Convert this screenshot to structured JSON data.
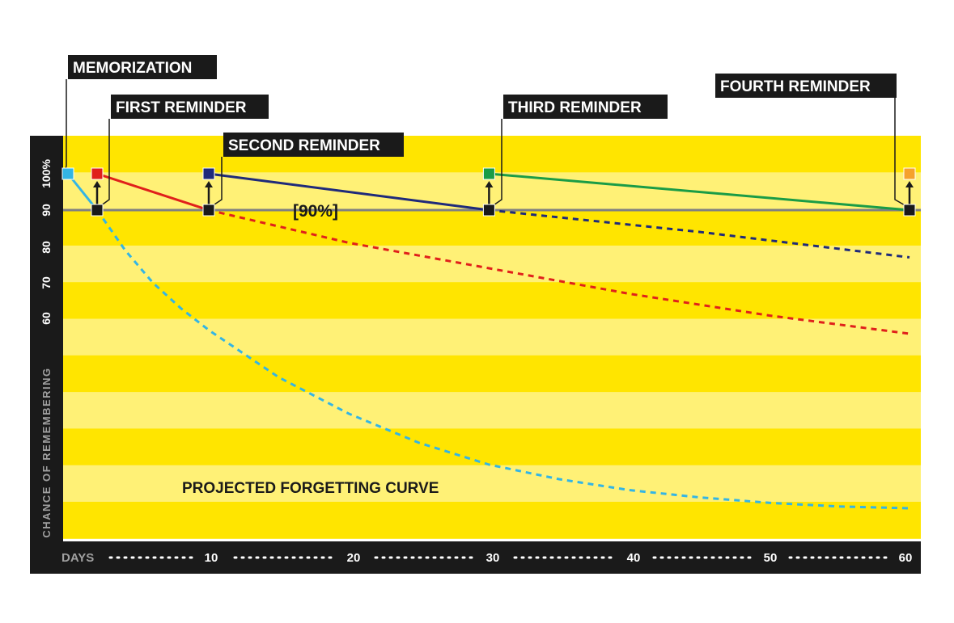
{
  "chart_data": {
    "type": "line",
    "title": "",
    "xlabel": "DAYS",
    "ylabel": "CHANCE OF REMEMBERING",
    "x_ticks": [
      "10",
      "20",
      "30",
      "40",
      "50",
      "60"
    ],
    "y_ticks": [
      "100%",
      "90",
      "80",
      "70",
      "60"
    ],
    "xlim": [
      0,
      60
    ],
    "ylim": [
      0,
      110
    ],
    "threshold": {
      "value": 90,
      "label": "[90%]"
    },
    "annotations": {
      "curve_label": "PROJECTED FORGETTING CURVE"
    },
    "events": [
      {
        "label": "MEMORIZATION",
        "x": 0
      },
      {
        "label": "FIRST REMINDER",
        "x": 2
      },
      {
        "label": "SECOND REMINDER",
        "x": 10
      },
      {
        "label": "THIRD REMINDER",
        "x": 30
      },
      {
        "label": "FOURTH REMINDER",
        "x": 60
      }
    ],
    "series": [
      {
        "color": "#33b5e5",
        "style": "solid",
        "points": [
          [
            0,
            100
          ],
          [
            2,
            90
          ]
        ]
      },
      {
        "color": "#33b5e5",
        "style": "dashed",
        "points": [
          [
            2,
            90
          ],
          [
            4,
            79
          ],
          [
            6,
            70
          ],
          [
            8,
            63
          ],
          [
            10,
            57
          ],
          [
            15,
            44
          ],
          [
            20,
            34
          ],
          [
            25,
            26
          ],
          [
            30,
            20
          ],
          [
            35,
            16
          ],
          [
            40,
            13
          ],
          [
            45,
            11
          ],
          [
            50,
            9.5
          ],
          [
            55,
            8.5
          ],
          [
            60,
            8
          ]
        ]
      },
      {
        "color": "#e0201b",
        "style": "solid",
        "points": [
          [
            2,
            100
          ],
          [
            10,
            90
          ]
        ]
      },
      {
        "color": "#e0201b",
        "style": "dashed",
        "points": [
          [
            10,
            90
          ],
          [
            20,
            81
          ],
          [
            30,
            74
          ],
          [
            40,
            67
          ],
          [
            50,
            61
          ],
          [
            60,
            56
          ]
        ]
      },
      {
        "color": "#1f2a7a",
        "style": "solid",
        "points": [
          [
            10,
            100
          ],
          [
            30,
            90
          ]
        ]
      },
      {
        "color": "#1f2a7a",
        "style": "dashed",
        "points": [
          [
            30,
            90
          ],
          [
            45,
            84
          ],
          [
            60,
            77
          ]
        ]
      },
      {
        "color": "#1a9c46",
        "style": "solid",
        "points": [
          [
            30,
            100
          ],
          [
            60,
            90
          ]
        ]
      }
    ],
    "markers": [
      {
        "x": 0,
        "y": 100,
        "color": "#33b5e5"
      },
      {
        "x": 2,
        "y": 100,
        "color": "#e0201b"
      },
      {
        "x": 10,
        "y": 100,
        "color": "#1f2a7a"
      },
      {
        "x": 30,
        "y": 100,
        "color": "#1a9c46"
      },
      {
        "x": 60,
        "y": 100,
        "color": "#f5a12c"
      },
      {
        "x": 2,
        "y": 90,
        "color": "#1a1a1a"
      },
      {
        "x": 10,
        "y": 90,
        "color": "#1a1a1a"
      },
      {
        "x": 30,
        "y": 90,
        "color": "#1a1a1a"
      },
      {
        "x": 60,
        "y": 90,
        "color": "#1a1a1a"
      }
    ],
    "arrows": [
      2,
      10,
      30,
      60
    ],
    "colors": {
      "band_dark": "#ffe500",
      "band_light": "#fff176",
      "frame": "#1a1a1a",
      "threshold_line": "#808080"
    },
    "grid": false,
    "legend": "none"
  }
}
